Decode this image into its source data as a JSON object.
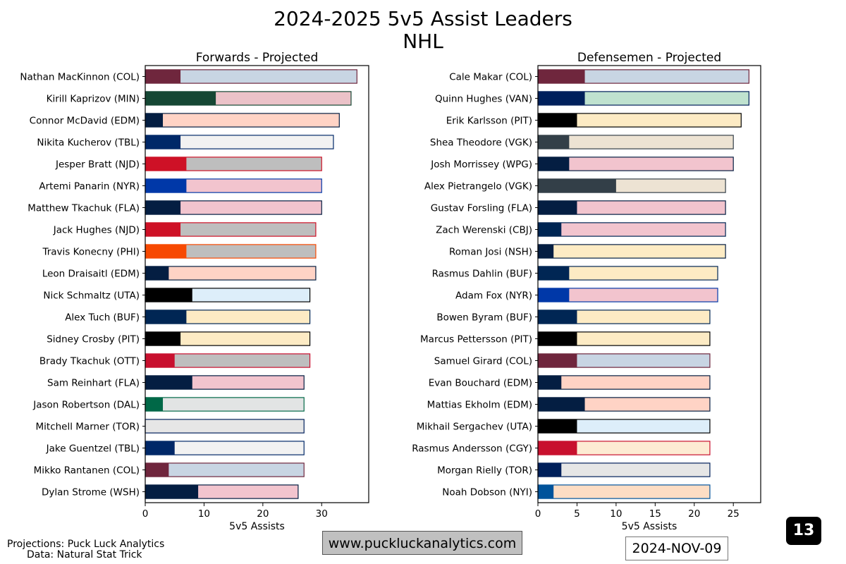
{
  "header": {
    "title_line1": "2024-2025 5v5 Assist Leaders",
    "title_line2": "NHL"
  },
  "footer": {
    "projections_credit": "Projections: Puck Luck Analytics",
    "data_credit": "Data: Natural Stat Trick",
    "website": "www.puckluckanalytics.com",
    "date": "2024-NOV-09",
    "page_number": "13"
  },
  "chart_data": [
    {
      "type": "bar",
      "orientation": "horizontal",
      "stacked": true,
      "title": "Forwards - Projected",
      "xlabel": "5v5 Assists",
      "xlim": [
        0,
        38
      ],
      "xticks": [
        0,
        10,
        20,
        30
      ],
      "series": [
        {
          "name": "current"
        },
        {
          "name": "projected"
        }
      ],
      "bars": [
        {
          "label": "Nathan MacKinnon (COL)",
          "current": 6,
          "projected": 36,
          "primary": "#6F263D",
          "secondary": "#C8D5E3",
          "edge": "#6F263D"
        },
        {
          "label": "Kirill Kaprizov (MIN)",
          "current": 12,
          "projected": 35,
          "primary": "#154734",
          "secondary": "#EBC2C8",
          "edge": "#154734"
        },
        {
          "label": "Connor McDavid (EDM)",
          "current": 3,
          "projected": 33,
          "primary": "#041E42",
          "secondary": "#FFD3C5",
          "edge": "#041E42"
        },
        {
          "label": "Nikita Kucherov (TBL)",
          "current": 6,
          "projected": 32,
          "primary": "#002868",
          "secondary": "#F2F2F2",
          "edge": "#002868"
        },
        {
          "label": "Jesper Bratt (NJD)",
          "current": 7,
          "projected": 30,
          "primary": "#CE1126",
          "secondary": "#BEBEBE",
          "edge": "#CE1126"
        },
        {
          "label": "Artemi Panarin (NYR)",
          "current": 7,
          "projected": 30,
          "primary": "#0038A8",
          "secondary": "#F2C4CE",
          "edge": "#0038A8"
        },
        {
          "label": "Matthew Tkachuk (FLA)",
          "current": 6,
          "projected": 30,
          "primary": "#041E42",
          "secondary": "#F2C4CE",
          "edge": "#041E42"
        },
        {
          "label": "Jack Hughes (NJD)",
          "current": 6,
          "projected": 29,
          "primary": "#CE1126",
          "secondary": "#BEBEBE",
          "edge": "#CE1126"
        },
        {
          "label": "Travis Konecny (PHI)",
          "current": 7,
          "projected": 29,
          "primary": "#F74902",
          "secondary": "#BEBEBE",
          "edge": "#F74902"
        },
        {
          "label": "Leon Draisaitl (EDM)",
          "current": 4,
          "projected": 29,
          "primary": "#041E42",
          "secondary": "#FFD3C5",
          "edge": "#041E42"
        },
        {
          "label": "Nick Schmaltz (UTA)",
          "current": 8,
          "projected": 28,
          "primary": "#000000",
          "secondary": "#DDEEFA",
          "edge": "#000000"
        },
        {
          "label": "Alex Tuch (BUF)",
          "current": 7,
          "projected": 28,
          "primary": "#002654",
          "secondary": "#FDEBC4",
          "edge": "#002654"
        },
        {
          "label": "Sidney Crosby (PIT)",
          "current": 6,
          "projected": 28,
          "primary": "#000000",
          "secondary": "#FDEBC4",
          "edge": "#000000"
        },
        {
          "label": "Brady Tkachuk (OTT)",
          "current": 5,
          "projected": 28,
          "primary": "#C8102E",
          "secondary": "#BEBEBE",
          "edge": "#C8102E"
        },
        {
          "label": "Sam Reinhart (FLA)",
          "current": 8,
          "projected": 27,
          "primary": "#041E42",
          "secondary": "#F2C4CE",
          "edge": "#041E42"
        },
        {
          "label": "Jason Robertson (DAL)",
          "current": 3,
          "projected": 27,
          "primary": "#006847",
          "secondary": "#E2E4E4",
          "edge": "#006847"
        },
        {
          "label": "Mitchell Marner (TOR)",
          "current": 0,
          "projected": 27,
          "primary": "#00205B",
          "secondary": "#E6E6E6",
          "edge": "#00205B"
        },
        {
          "label": "Jake Guentzel (TBL)",
          "current": 5,
          "projected": 27,
          "primary": "#002868",
          "secondary": "#F2F2F2",
          "edge": "#002868"
        },
        {
          "label": "Mikko Rantanen (COL)",
          "current": 4,
          "projected": 27,
          "primary": "#6F263D",
          "secondary": "#C8D5E3",
          "edge": "#6F263D"
        },
        {
          "label": "Dylan Strome (WSH)",
          "current": 9,
          "projected": 26,
          "primary": "#041E42",
          "secondary": "#F2C4CE",
          "edge": "#041E42"
        }
      ]
    },
    {
      "type": "bar",
      "orientation": "horizontal",
      "stacked": true,
      "title": "Defensemen - Projected",
      "xlabel": "5v5 Assists",
      "xlim": [
        0,
        28.5
      ],
      "xticks": [
        0,
        5,
        10,
        15,
        20,
        25
      ],
      "series": [
        {
          "name": "current"
        },
        {
          "name": "projected"
        }
      ],
      "bars": [
        {
          "label": "Cale Makar (COL)",
          "current": 6,
          "projected": 27,
          "primary": "#6F263D",
          "secondary": "#C8D5E3",
          "edge": "#6F263D"
        },
        {
          "label": "Quinn Hughes (VAN)",
          "current": 6,
          "projected": 27,
          "primary": "#00205B",
          "secondary": "#BFE2CF",
          "edge": "#00205B"
        },
        {
          "label": "Erik Karlsson (PIT)",
          "current": 5,
          "projected": 26,
          "primary": "#000000",
          "secondary": "#FDEBC4",
          "edge": "#000000"
        },
        {
          "label": "Shea Theodore (VGK)",
          "current": 4,
          "projected": 25,
          "primary": "#333F48",
          "secondary": "#EDE3D3",
          "edge": "#333F48"
        },
        {
          "label": "Josh Morrissey (WPG)",
          "current": 4,
          "projected": 25,
          "primary": "#041E42",
          "secondary": "#F2C4CE",
          "edge": "#041E42"
        },
        {
          "label": "Alex Pietrangelo (VGK)",
          "current": 10,
          "projected": 24,
          "primary": "#333F48",
          "secondary": "#EDE3D3",
          "edge": "#333F48"
        },
        {
          "label": "Gustav Forsling (FLA)",
          "current": 5,
          "projected": 24,
          "primary": "#041E42",
          "secondary": "#F2C4CE",
          "edge": "#041E42"
        },
        {
          "label": "Zach Werenski (CBJ)",
          "current": 3,
          "projected": 24,
          "primary": "#002654",
          "secondary": "#F2C4CE",
          "edge": "#002654"
        },
        {
          "label": "Roman Josi (NSH)",
          "current": 2,
          "projected": 24,
          "primary": "#041E42",
          "secondary": "#FDEBC4",
          "edge": "#041E42"
        },
        {
          "label": "Rasmus Dahlin (BUF)",
          "current": 4,
          "projected": 23,
          "primary": "#002654",
          "secondary": "#FDEBC4",
          "edge": "#002654"
        },
        {
          "label": "Adam Fox (NYR)",
          "current": 4,
          "projected": 23,
          "primary": "#0038A8",
          "secondary": "#F2C4CE",
          "edge": "#0038A8"
        },
        {
          "label": "Bowen Byram (BUF)",
          "current": 5,
          "projected": 22,
          "primary": "#002654",
          "secondary": "#FDEBC4",
          "edge": "#002654"
        },
        {
          "label": "Marcus Pettersson (PIT)",
          "current": 5,
          "projected": 22,
          "primary": "#000000",
          "secondary": "#FDEBC4",
          "edge": "#000000"
        },
        {
          "label": "Samuel Girard (COL)",
          "current": 5,
          "projected": 22,
          "primary": "#6F263D",
          "secondary": "#C8D5E3",
          "edge": "#6F263D"
        },
        {
          "label": "Evan Bouchard (EDM)",
          "current": 3,
          "projected": 22,
          "primary": "#041E42",
          "secondary": "#FFD3C5",
          "edge": "#041E42"
        },
        {
          "label": "Mattias Ekholm (EDM)",
          "current": 6,
          "projected": 22,
          "primary": "#041E42",
          "secondary": "#FFD3C5",
          "edge": "#041E42"
        },
        {
          "label": "Mikhail Sergachev (UTA)",
          "current": 5,
          "projected": 22,
          "primary": "#000000",
          "secondary": "#DDEEFA",
          "edge": "#000000"
        },
        {
          "label": "Rasmus Andersson (CGY)",
          "current": 5,
          "projected": 22,
          "primary": "#C8102E",
          "secondary": "#FDEBD3",
          "edge": "#C8102E"
        },
        {
          "label": "Morgan Rielly (TOR)",
          "current": 3,
          "projected": 22,
          "primary": "#00205B",
          "secondary": "#E6E6E6",
          "edge": "#00205B"
        },
        {
          "label": "Noah Dobson (NYI)",
          "current": 2,
          "projected": 22,
          "primary": "#00539B",
          "secondary": "#FDDDC4",
          "edge": "#00539B"
        }
      ]
    }
  ]
}
